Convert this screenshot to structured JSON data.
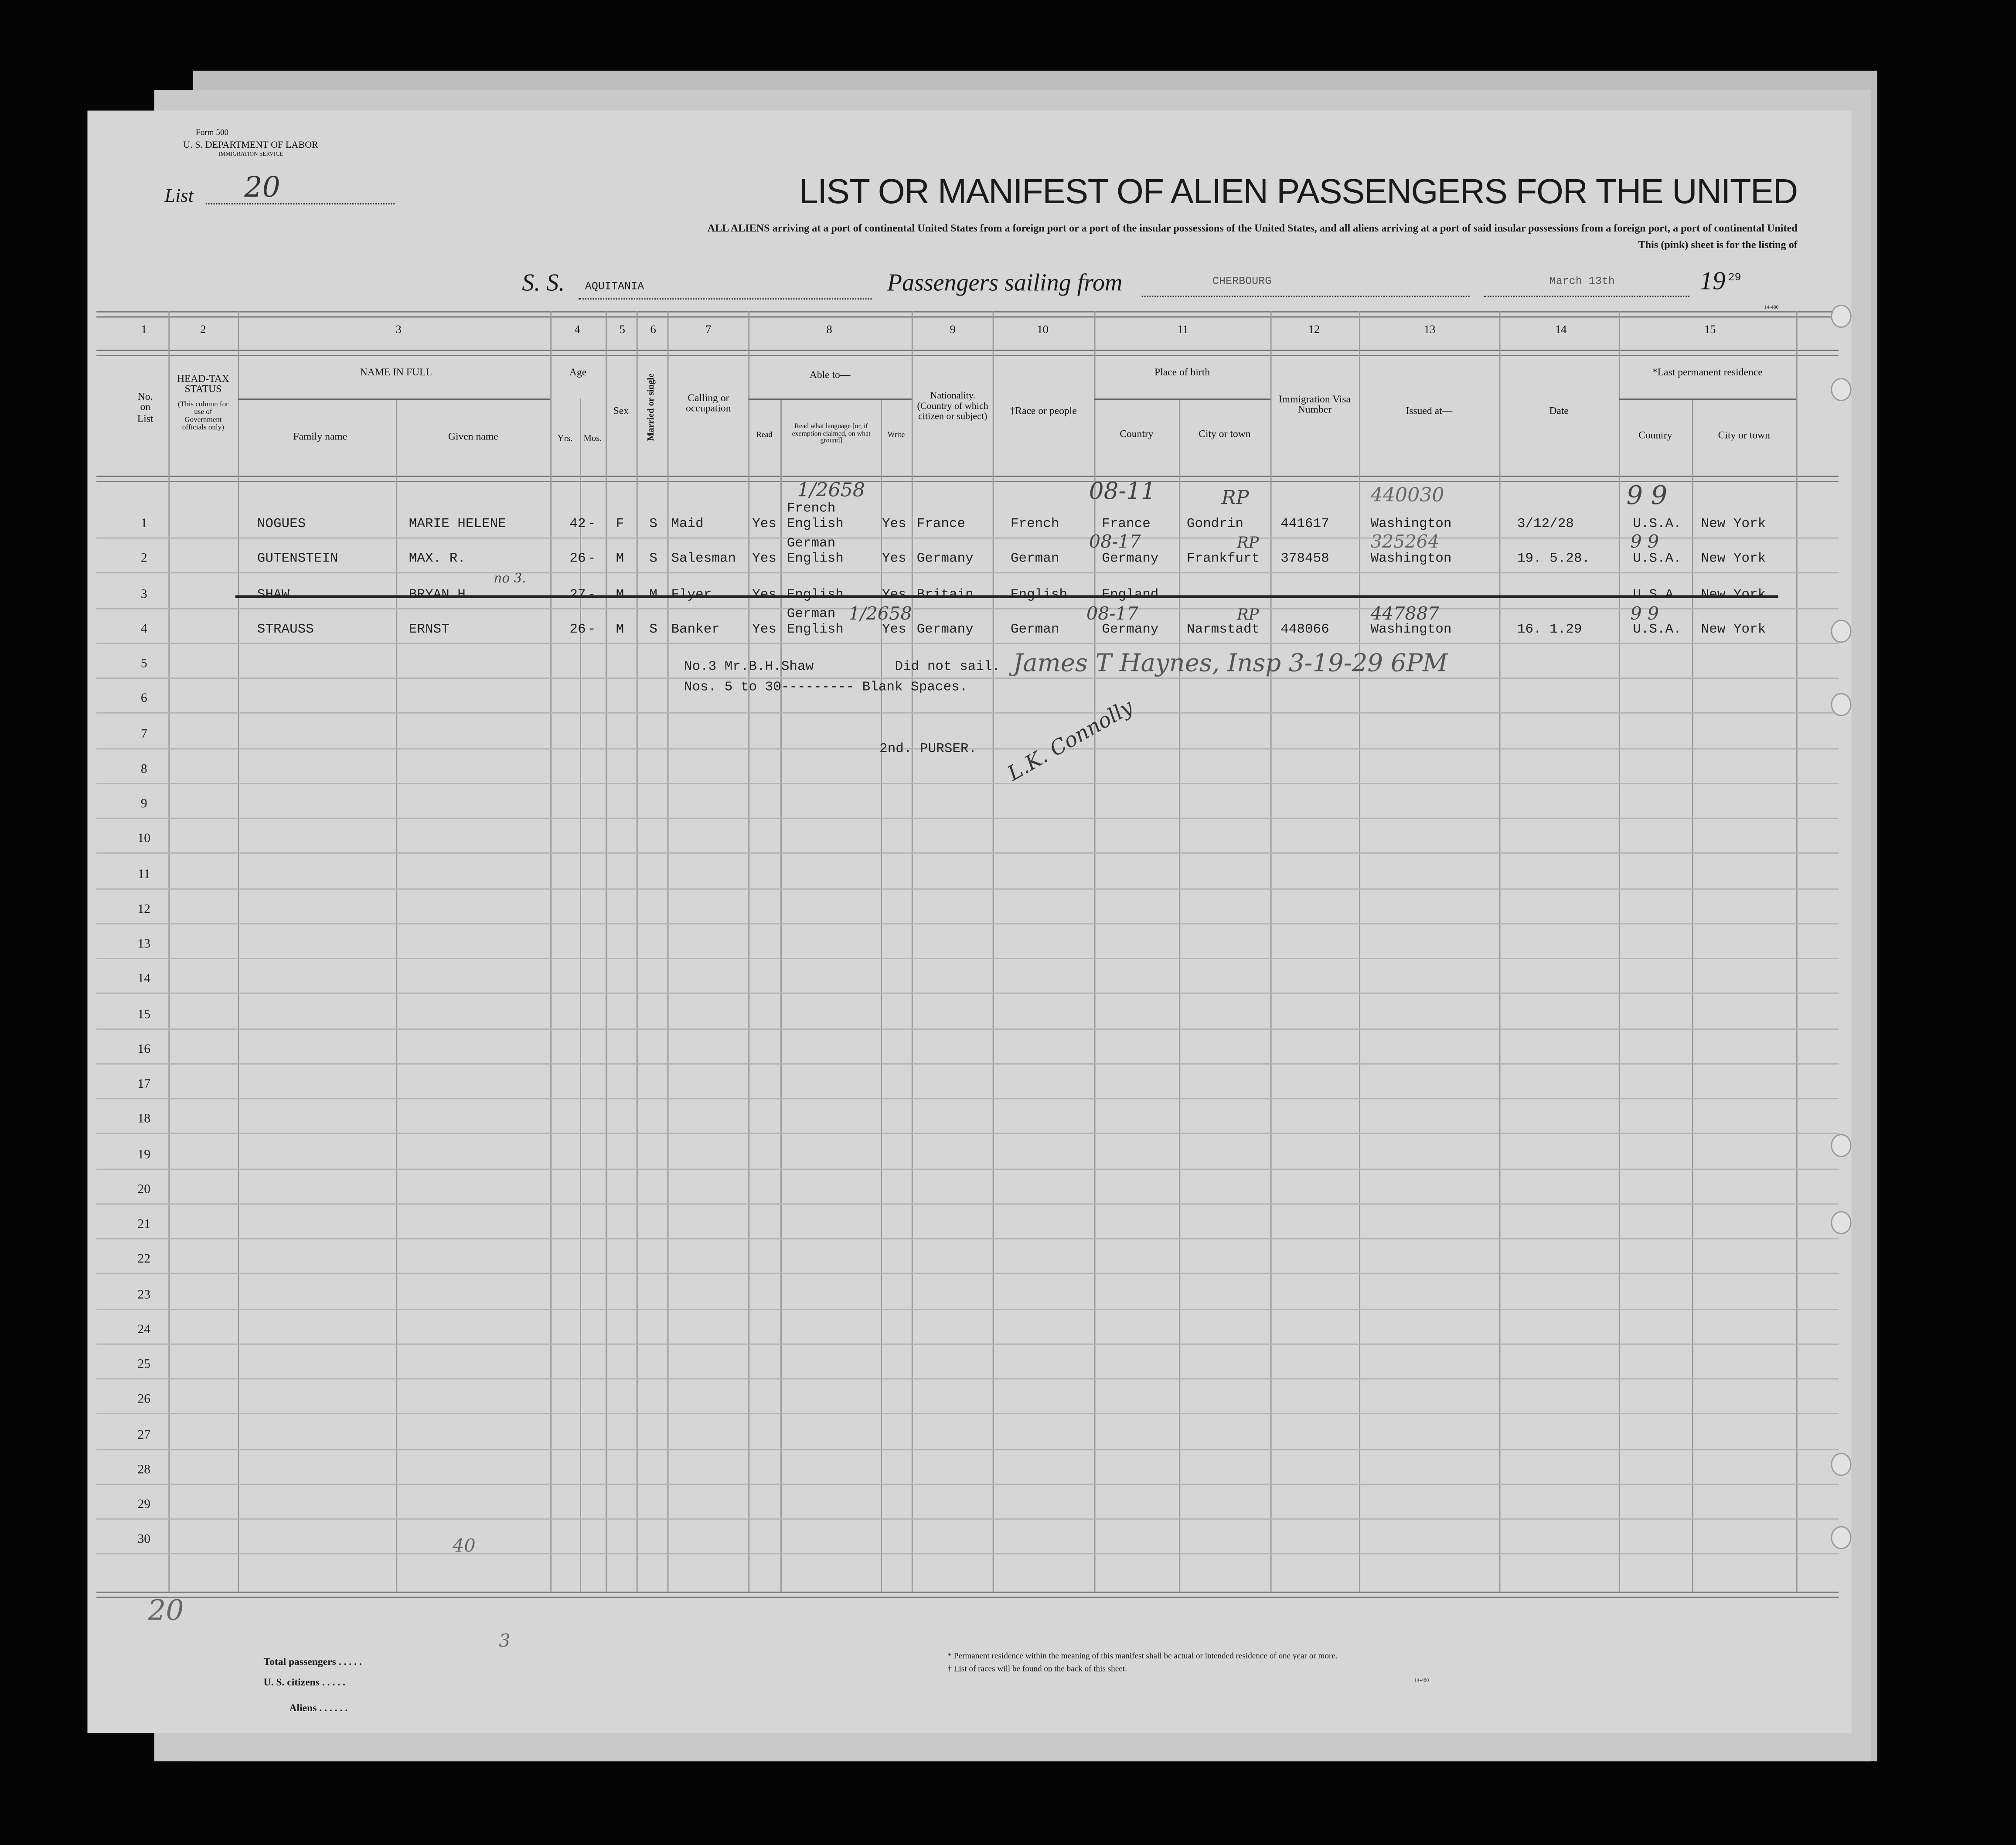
{
  "form": {
    "form_number": "Form 500",
    "department": "U. S. DEPARTMENT OF LABOR",
    "service": "IMMIGRATION SERVICE",
    "form_code": "14-480"
  },
  "list": {
    "label": "List",
    "number": "20"
  },
  "title": "LIST OR MANIFEST OF ALIEN PASSENGERS FOR THE UNITED",
  "subtitle_1": "ALL ALIENS arriving at a port of continental United States from a foreign port or a port of the insular possessions of the United States, and all aliens arriving at a port of said insular possessions from a foreign port, a port of continental United",
  "subtitle_2": "This (pink) sheet is for the listing of",
  "voyage": {
    "ss_label": "S. S.",
    "ship": "AQUITANIA",
    "sailing_label": "Passengers sailing from",
    "port": "CHERBOURG",
    "date": "March 13th",
    "year_prefix": "19",
    "year_suffix": "29"
  },
  "columns": {
    "numbers": [
      "1",
      "2",
      "3",
      "4",
      "5",
      "6",
      "7",
      "8",
      "9",
      "10",
      "11",
      "12",
      "13",
      "14",
      "15"
    ],
    "no_on_list": "No. on List",
    "head_tax": "HEAD-TAX STATUS",
    "head_tax_note": "(This column for use of Government officials only)",
    "name_in_full": "NAME IN FULL",
    "family_name": "Family name",
    "given_name": "Given name",
    "age": "Age",
    "yrs": "Yrs.",
    "mos": "Mos.",
    "sex": "Sex",
    "married": "Married or single",
    "calling": "Calling or occupation",
    "able_to": "Able to—",
    "read": "Read",
    "read_language": "Read what language [or, if exemption claimed, on what ground]",
    "write": "Write",
    "nationality": "Nationality. (Country of which citizen or subject)",
    "race": "†Race or people",
    "place_of_birth": "Place of birth",
    "country": "Country",
    "city": "City or town",
    "visa": "Immigration Visa Number",
    "issued_at": "Issued at—",
    "date": "Date",
    "last_residence": "*Last permanent residence",
    "res_country": "Country",
    "res_city": "City or town"
  },
  "row_numbers": [
    "1",
    "2",
    "3",
    "4",
    "5",
    "6",
    "7",
    "8",
    "9",
    "10",
    "11",
    "12",
    "13",
    "14",
    "15",
    "16",
    "17",
    "18",
    "19",
    "20",
    "21",
    "22",
    "23",
    "24",
    "25",
    "26",
    "27",
    "28",
    "29",
    "30"
  ],
  "passengers": [
    {
      "no": "1",
      "family": "NOGUES",
      "given": "MARIE HELENE",
      "yrs": "42",
      "mos": "-",
      "sex": "F",
      "married": "S",
      "occupation": "Maid",
      "read": "Yes",
      "languages": [
        "French",
        "English"
      ],
      "write": "Yes",
      "nationality": "France",
      "race": "French",
      "birth_country": "France",
      "birth_city": "Gondrin",
      "visa": "441617",
      "issued_at": "Washington",
      "date": "3/12/28",
      "res_country": "U.S.A.",
      "res_city": "New York",
      "struck": false
    },
    {
      "no": "2",
      "family": "GUTENSTEIN",
      "given": "MAX. R.",
      "yrs": "26",
      "mos": "-",
      "sex": "M",
      "married": "S",
      "occupation": "Salesman",
      "read": "Yes",
      "languages": [
        "German",
        "English"
      ],
      "write": "Yes",
      "nationality": "Germany",
      "race": "German",
      "birth_country": "Germany",
      "birth_city": "Frankfurt",
      "visa": "378458",
      "issued_at": "Washington",
      "date": "19. 5.28.",
      "res_country": "U.S.A.",
      "res_city": "New York",
      "struck": false
    },
    {
      "no": "3",
      "family": "SHAW",
      "given": "BRYAN H.",
      "yrs": "27",
      "mos": "-",
      "sex": "M",
      "married": "M",
      "occupation": "Flyer",
      "read": "Yes",
      "languages": [
        "English"
      ],
      "write": "Yes",
      "nationality": "Britain",
      "race": "English",
      "birth_country": "England",
      "birth_city": "",
      "visa": "",
      "issued_at": "",
      "date": "",
      "res_country": "U.S.A.",
      "res_city": "New York.",
      "struck": true
    },
    {
      "no": "4",
      "family": "STRAUSS",
      "given": "ERNST",
      "yrs": "26",
      "mos": "-",
      "sex": "M",
      "married": "S",
      "occupation": "Banker",
      "read": "Yes",
      "languages": [
        "German",
        "English"
      ],
      "write": "Yes",
      "nationality": "Germany",
      "race": "German",
      "birth_country": "Germany",
      "birth_city": "Narmstadt",
      "visa": "448066",
      "issued_at": "Washington",
      "date": "16. 1.29",
      "res_country": "U.S.A.",
      "res_city": "New York",
      "struck": false
    }
  ],
  "typed_notes": {
    "note_1a": "No.3 Mr.B.H.Shaw",
    "note_1b": "Did not sail.",
    "note_2": "Nos. 5 to 30--------- Blank Spaces.",
    "purser": "2nd. PURSER."
  },
  "handwritten": {
    "lang_1": "1/2658",
    "birth_1": "08-11",
    "visa_hw_1": "440030",
    "res_1": "9 9",
    "birth_2": "08-17",
    "visa_hw_2": "325264",
    "res_2": "9 9",
    "no3": "no 3.",
    "lang_4": "1/2658",
    "birth_4": "08-17",
    "visa_hw_4": "447887",
    "res_4": "9 9",
    "rp": "RP",
    "inspector": "James T Haynes, Insp 3-19-29 6PM",
    "signature": "L.K. Connolly",
    "bottom_40": "40",
    "bottom_20": "20",
    "total_3": "3"
  },
  "footer": {
    "total_passengers": "Total passengers . . . . .",
    "us_citizens": "U. S. citizens . . . . .",
    "aliens": "Aliens . . . . . .",
    "footnote_1": "* Permanent residence within the meaning of this manifest shall be actual or intended residence of one year or more.",
    "footnote_2": "† List of races will be found on the back of this sheet.",
    "code": "14-480"
  }
}
